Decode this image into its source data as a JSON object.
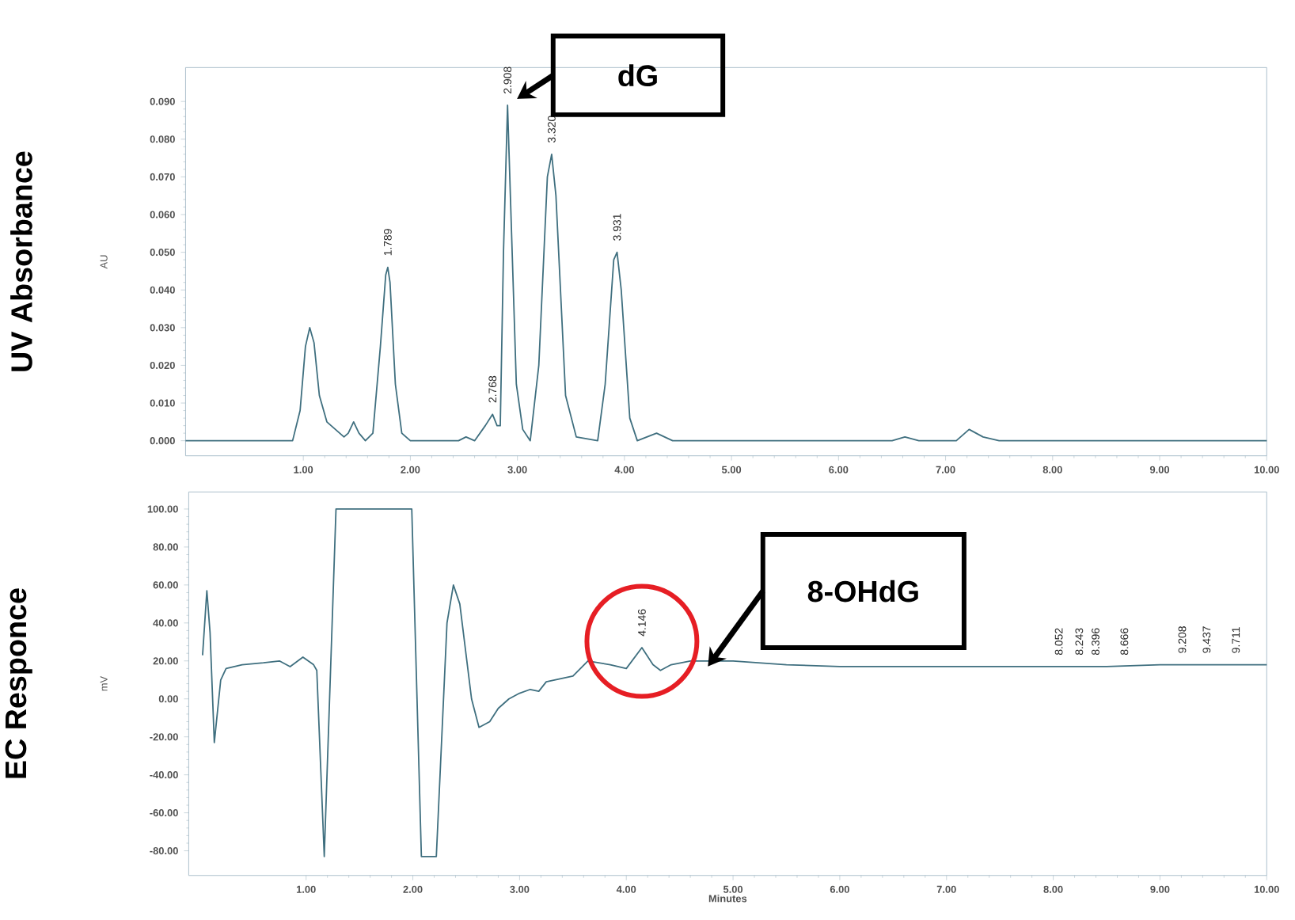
{
  "chart_data": [
    {
      "type": "line",
      "ylabel": "UV Absorbance",
      "xlim": [
        -0.1,
        10.0
      ],
      "ylim": [
        -0.004,
        0.099
      ],
      "xticks": [
        {
          "value": 1,
          "label": "1.00"
        },
        {
          "value": 2,
          "label": "2.00"
        },
        {
          "value": 3,
          "label": "3.00"
        },
        {
          "value": 4,
          "label": "4.00"
        },
        {
          "value": 5,
          "label": "5.00"
        },
        {
          "value": 6,
          "label": "6.00"
        },
        {
          "value": 7,
          "label": "7.00"
        },
        {
          "value": 8,
          "label": "8.00"
        },
        {
          "value": 9,
          "label": "9.00"
        },
        {
          "value": 10,
          "label": "10.00"
        }
      ],
      "yticks": [
        {
          "value": 0,
          "label": "0.000"
        },
        {
          "value": 0.01,
          "label": "0.010"
        },
        {
          "value": 0.02,
          "label": "0.020"
        },
        {
          "value": 0.03,
          "label": "0.030"
        },
        {
          "value": 0.04,
          "label": "0.040"
        },
        {
          "value": 0.05,
          "label": "0.050"
        },
        {
          "value": 0.06,
          "label": "0.060"
        },
        {
          "value": 0.07,
          "label": "0.070"
        },
        {
          "value": 0.08,
          "label": "0.080"
        },
        {
          "value": 0.09,
          "label": "0.090"
        }
      ],
      "series": [
        {
          "color": "#3f6f7f",
          "x": [
            -0.1,
            0.9,
            0.97,
            1.02,
            1.06,
            1.1,
            1.15,
            1.22,
            1.3,
            1.38,
            1.42,
            1.47,
            1.52,
            1.58,
            1.65,
            1.72,
            1.77,
            1.789,
            1.81,
            1.86,
            1.92,
            2.0,
            2.45,
            2.52,
            2.6,
            2.7,
            2.768,
            2.81,
            2.84,
            2.87,
            2.908,
            2.94,
            2.99,
            3.05,
            3.12,
            3.2,
            3.28,
            3.32,
            3.36,
            3.45,
            3.55,
            3.75,
            3.82,
            3.9,
            3.931,
            3.97,
            4.05,
            4.12,
            4.3,
            4.45,
            6.5,
            6.62,
            6.75,
            7.1,
            7.22,
            7.35,
            7.5,
            10.0
          ],
          "values": [
            0,
            0,
            0.008,
            0.025,
            0.03,
            0.026,
            0.012,
            0.005,
            0.003,
            0.001,
            0.002,
            0.005,
            0.002,
            0.0,
            0.002,
            0.025,
            0.044,
            0.046,
            0.042,
            0.015,
            0.002,
            0,
            0,
            0.001,
            0.0,
            0.004,
            0.007,
            0.004,
            0.004,
            0.05,
            0.089,
            0.06,
            0.015,
            0.003,
            0.0,
            0.02,
            0.07,
            0.076,
            0.065,
            0.012,
            0.001,
            0.0,
            0.015,
            0.048,
            0.05,
            0.04,
            0.006,
            0.0,
            0.002,
            0.0,
            0.0,
            0.001,
            0.0,
            0.0,
            0.003,
            0.001,
            0,
            0
          ]
        }
      ],
      "annotations": [
        "AU",
        {
          "text": "1.789",
          "x": 1.789,
          "y": 0.046
        },
        {
          "text": "2.768",
          "x": 2.768,
          "y": 0.007
        },
        {
          "text": "2.908",
          "x": 2.908,
          "y": 0.089
        },
        {
          "text": "3.320",
          "x": 3.32,
          "y": 0.076
        },
        {
          "text": "3.931",
          "x": 3.931,
          "y": 0.05
        },
        "dG"
      ]
    },
    {
      "type": "line",
      "ylabel": "EC Responce",
      "xlabel": "Minutes",
      "xlim": [
        -0.1,
        10.0
      ],
      "ylim": [
        -93,
        109
      ],
      "xticks": [
        {
          "value": 1,
          "label": "1.00"
        },
        {
          "value": 2,
          "label": "2.00"
        },
        {
          "value": 3,
          "label": "3.00"
        },
        {
          "value": 4,
          "label": "4.00"
        },
        {
          "value": 5,
          "label": "5.00"
        },
        {
          "value": 6,
          "label": "6.00"
        },
        {
          "value": 7,
          "label": "7.00"
        },
        {
          "value": 8,
          "label": "8.00"
        },
        {
          "value": 9,
          "label": "9.00"
        },
        {
          "value": 10,
          "label": "10.00"
        }
      ],
      "yticks": [
        {
          "value": -80,
          "label": "-80.00"
        },
        {
          "value": -60,
          "label": "-60.00"
        },
        {
          "value": -40,
          "label": "-40.00"
        },
        {
          "value": -20,
          "label": "-20.00"
        },
        {
          "value": 0,
          "label": "0.00"
        },
        {
          "value": 20,
          "label": "20.00"
        },
        {
          "value": 40,
          "label": "40.00"
        },
        {
          "value": 60,
          "label": "60.00"
        },
        {
          "value": 80,
          "label": "80.00"
        },
        {
          "value": 100,
          "label": "100.00"
        }
      ],
      "series": [
        {
          "color": "#3f6f7f",
          "x": [
            0.03,
            0.07,
            0.1,
            0.14,
            0.2,
            0.25,
            0.4,
            0.6,
            0.75,
            0.85,
            0.97,
            1.07,
            1.1,
            1.17,
            1.28,
            1.99,
            2.08,
            2.22,
            2.32,
            2.38,
            2.44,
            2.55,
            2.62,
            2.72,
            2.8,
            2.9,
            3.0,
            3.1,
            3.18,
            3.25,
            3.5,
            3.64,
            3.85,
            4.0,
            4.146,
            4.25,
            4.32,
            4.42,
            4.6,
            5.0,
            5.5,
            6.0,
            6.5,
            7.0,
            7.5,
            8.0,
            8.5,
            9.0,
            9.5,
            10.0
          ],
          "values": [
            23,
            57,
            35,
            -23,
            10,
            16,
            18,
            19,
            20,
            17,
            22,
            18,
            15,
            -83,
            100,
            100,
            -83,
            -83,
            40,
            60,
            50,
            0,
            -15,
            -12,
            -5,
            0,
            3,
            5,
            4,
            9,
            12,
            20,
            18,
            16,
            27,
            18,
            15,
            18,
            20,
            20,
            18,
            17,
            17,
            17,
            17,
            17,
            17,
            18,
            18,
            18
          ]
        }
      ],
      "annotations": [
        "mV",
        {
          "text": "4.146",
          "x": 4.146,
          "y": 27
        },
        {
          "text": "8.052",
          "x": 8.052,
          "y": 17
        },
        {
          "text": "8.243",
          "x": 8.243,
          "y": 17
        },
        {
          "text": "8.396",
          "x": 8.396,
          "y": 17
        },
        {
          "text": "8.666",
          "x": 8.666,
          "y": 17
        },
        {
          "text": "9.208",
          "x": 9.208,
          "y": 18
        },
        {
          "text": "9.437",
          "x": 9.437,
          "y": 18
        },
        {
          "text": "9.711",
          "x": 9.711,
          "y": 18
        },
        "8-OHdG"
      ]
    }
  ]
}
